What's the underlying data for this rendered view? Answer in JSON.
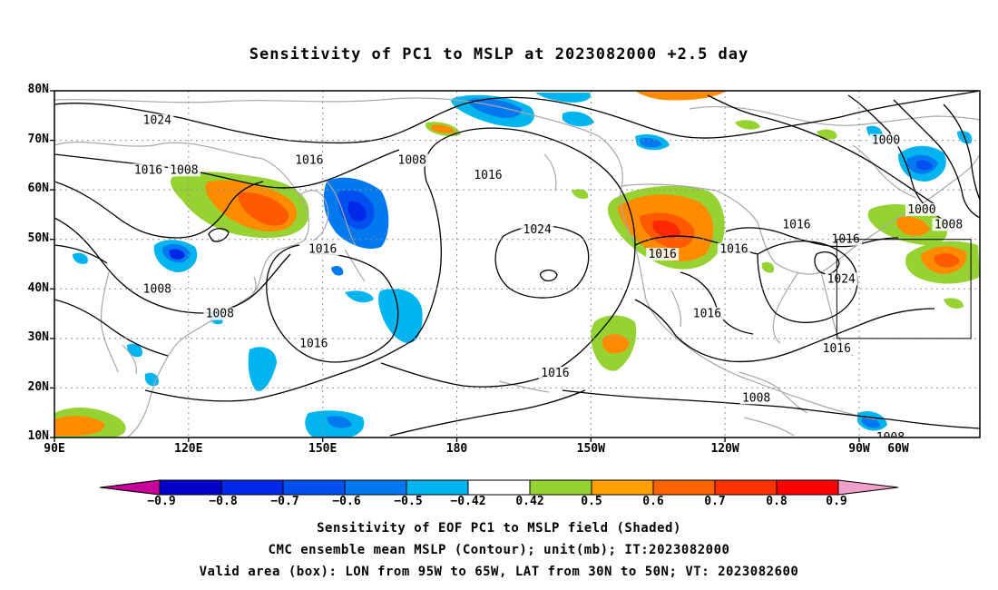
{
  "title": "Sensitivity of PC1 to MSLP at 2023082000 +2.5 day",
  "lat_labels": [
    "80N",
    "70N",
    "60N",
    "50N",
    "40N",
    "30N",
    "20N",
    "10N"
  ],
  "lon_labels": [
    "90E",
    "120E",
    "150E",
    "180",
    "150W",
    "120W",
    "90W",
    "60W"
  ],
  "map": {
    "extent": {
      "lon_min": 90,
      "lon_max": 297,
      "lat_min": 10,
      "lat_max": 80
    },
    "valid_box": {
      "lon_west": -95,
      "lon_east": -65,
      "lat_south": 30,
      "lat_north": 50
    },
    "contour_labels": [
      {
        "text": "1024",
        "lon": 113,
        "lat": 74
      },
      {
        "text": "1016",
        "lon": 111,
        "lat": 64
      },
      {
        "text": "1008",
        "lon": 119,
        "lat": 64
      },
      {
        "text": "1008",
        "lon": 113,
        "lat": 40
      },
      {
        "text": "1008",
        "lon": 127,
        "lat": 35
      },
      {
        "text": "1016",
        "lon": 147,
        "lat": 66
      },
      {
        "text": "1016",
        "lon": 150,
        "lat": 48
      },
      {
        "text": "1016",
        "lon": 148,
        "lat": 29
      },
      {
        "text": "1008",
        "lon": 170,
        "lat": 66
      },
      {
        "text": "1016",
        "lon": 187,
        "lat": 63
      },
      {
        "text": "1024",
        "lon": 198,
        "lat": 52
      },
      {
        "text": "1016",
        "lon": 226,
        "lat": 47
      },
      {
        "text": "1016",
        "lon": 242,
        "lat": 48
      },
      {
        "text": "1024",
        "lon": 266,
        "lat": 42
      },
      {
        "text": "1016",
        "lon": 267,
        "lat": 50
      },
      {
        "text": "1016",
        "lon": 256,
        "lat": 53
      },
      {
        "text": "1000",
        "lon": 276,
        "lat": 70
      },
      {
        "text": "1000",
        "lon": 284,
        "lat": 56
      },
      {
        "text": "1008",
        "lon": 290,
        "lat": 53
      },
      {
        "text": "1016",
        "lon": 236,
        "lat": 35
      },
      {
        "text": "1016",
        "lon": 265,
        "lat": 28
      },
      {
        "text": "1016",
        "lon": 202,
        "lat": 23
      },
      {
        "text": "1008",
        "lon": 247,
        "lat": 18
      },
      {
        "text": "1008",
        "lon": 277,
        "lat": 10
      }
    ]
  },
  "colorbar": {
    "colors": [
      "#c8009c",
      "#0000c8",
      "#0028e6",
      "#0050f0",
      "#0078f0",
      "#00b4f0",
      "#ffffff",
      "#96d232",
      "#ffa000",
      "#ff6400",
      "#ff3200",
      "#ff0000",
      "#f0a0c8"
    ],
    "ticks": [
      "−0.9",
      "−0.8",
      "−0.7",
      "−0.6",
      "−0.5",
      "−0.42",
      "0.42",
      "0.5",
      "0.6",
      "0.7",
      "0.8",
      "0.9"
    ]
  },
  "captions": [
    "Sensitivity of EOF PC1 to MSLP field (Shaded)",
    "CMC ensemble mean MSLP (Contour); unit(mb); IT:2023082000",
    "Valid area (box): LON from 95W to 65W, LAT from 30N to 50N; VT: 2023082600"
  ]
}
